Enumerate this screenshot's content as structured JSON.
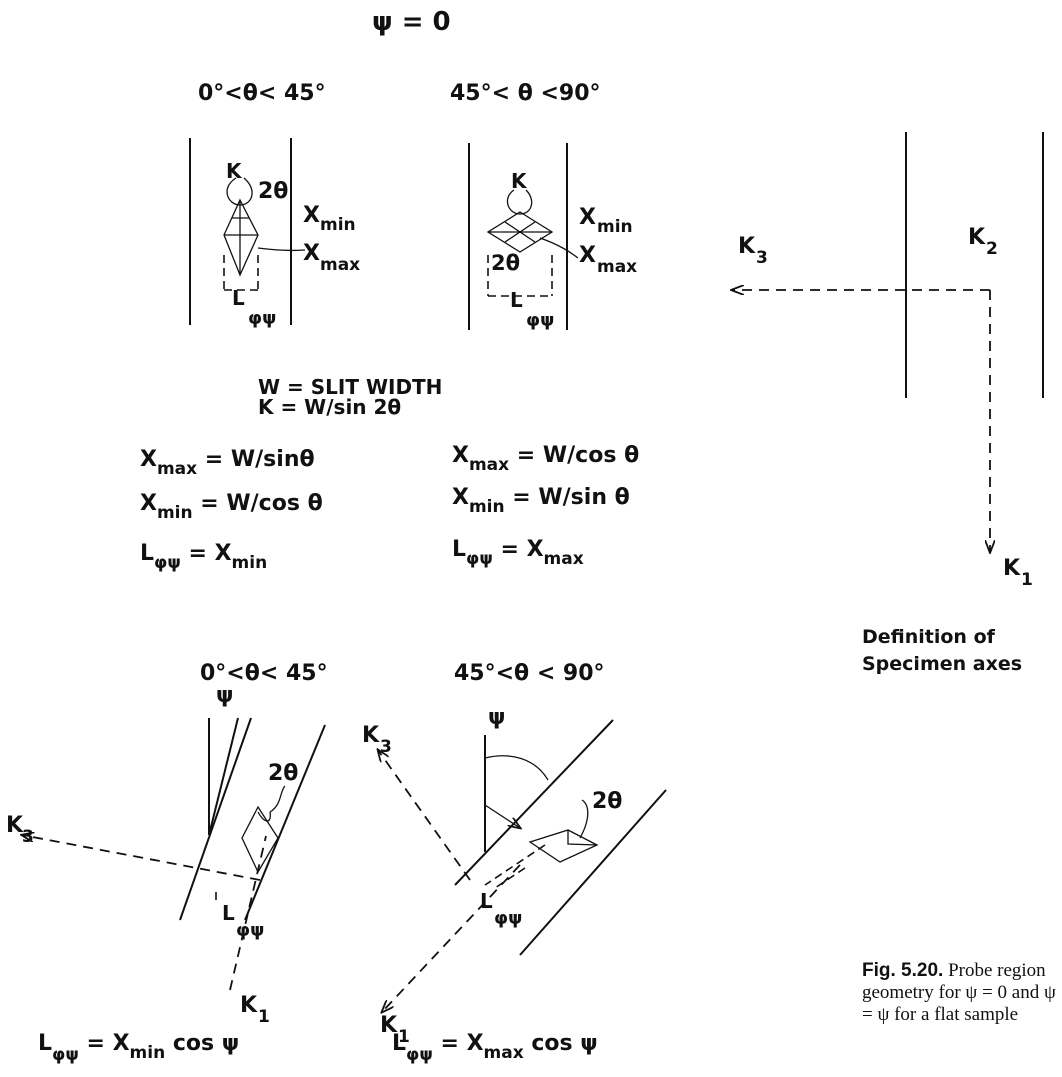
{
  "top": {
    "title": "ψ = 0",
    "range_left": "0°<θ< 45°",
    "range_right": "45°< θ <90°",
    "label_k": "K",
    "label_2theta": "2θ",
    "label_xmin": "X",
    "label_xmin_sub": "min",
    "label_xmax": "X",
    "label_xmax_sub": "max",
    "label_l": "L",
    "label_l_sub": "φψ"
  },
  "formulas": {
    "line1": "W = SLIT WIDTH",
    "line2": "K = W/sin 2θ",
    "left": [
      {
        "lhs": "X",
        "sub": "max",
        "rhs": " = W/sinθ"
      },
      {
        "lhs": "X",
        "sub": "min",
        "rhs": " = W/cos θ"
      },
      {
        "lhs": "L",
        "sub": "φψ",
        "rhs": " = X",
        "rhs_sub": "min"
      }
    ],
    "right": [
      {
        "lhs": "X",
        "sub": "max",
        "rhs": " = W/cos θ"
      },
      {
        "lhs": "X",
        "sub": "min",
        "rhs": " = W/sin θ"
      },
      {
        "lhs": "L",
        "sub": "φψ",
        "rhs": " = X",
        "rhs_sub": "max"
      }
    ]
  },
  "axes": {
    "k1": "K",
    "k1_sub": "1",
    "k2": "K",
    "k2_sub": "2",
    "k3": "K",
    "k3_sub": "3",
    "caption_line1": "Definition of",
    "caption_line2": "Specimen axes"
  },
  "bottom": {
    "range_left": "0°<θ< 45°",
    "range_right": "45°<θ < 90°",
    "psi": "ψ",
    "two_theta": "2θ",
    "formula_left": {
      "lhs": "L",
      "sub": "φψ",
      "rhs": " = X",
      "rhs_sub": "min",
      "tail": " cos ψ"
    },
    "formula_right": {
      "lhs": "L",
      "sub": "φψ",
      "rhs": " = X",
      "rhs_sub": "max",
      "tail": " cos ψ"
    }
  },
  "figure_caption": {
    "label": "Fig. 5.20.",
    "text": " Probe region geometry for ψ = 0 and ψ = ψ for a flat sample"
  }
}
